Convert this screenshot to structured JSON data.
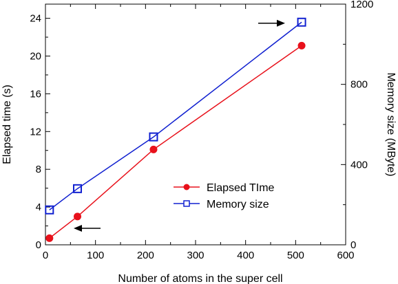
{
  "chart_data": {
    "type": "line",
    "title": "",
    "xlabel": "Number of atoms in the super cell",
    "ylabel_left": "Elapsed time (s)",
    "ylabel_right": "Memory size (MByte)",
    "xlim": [
      0,
      600
    ],
    "ylim_left": [
      0,
      25.5
    ],
    "ylim_right": [
      0,
      1200
    ],
    "x_ticks": [
      0,
      100,
      200,
      300,
      400,
      500,
      600
    ],
    "y_left_ticks": [
      0,
      4,
      8,
      12,
      16,
      20,
      24
    ],
    "y_right_ticks": [
      0,
      400,
      800,
      1200
    ],
    "grid": false,
    "legend_position": "center-right",
    "series": [
      {
        "name": "Elapsed TIme",
        "axis": "left",
        "color": "#e8111b",
        "marker": "filled-circle",
        "x": [
          8,
          64,
          216,
          512
        ],
        "y": [
          0.7,
          3.0,
          10.1,
          21.1
        ]
      },
      {
        "name": "Memory size",
        "axis": "right",
        "color": "#1020d0",
        "marker": "open-square",
        "x": [
          8,
          64,
          216,
          512
        ],
        "y": [
          174,
          280,
          538,
          1110
        ]
      }
    ],
    "annotations": [
      {
        "type": "arrow",
        "points_to": "left-axis",
        "series": "Elapsed TIme"
      },
      {
        "type": "arrow",
        "points_to": "right-axis",
        "series": "Memory size"
      }
    ]
  }
}
